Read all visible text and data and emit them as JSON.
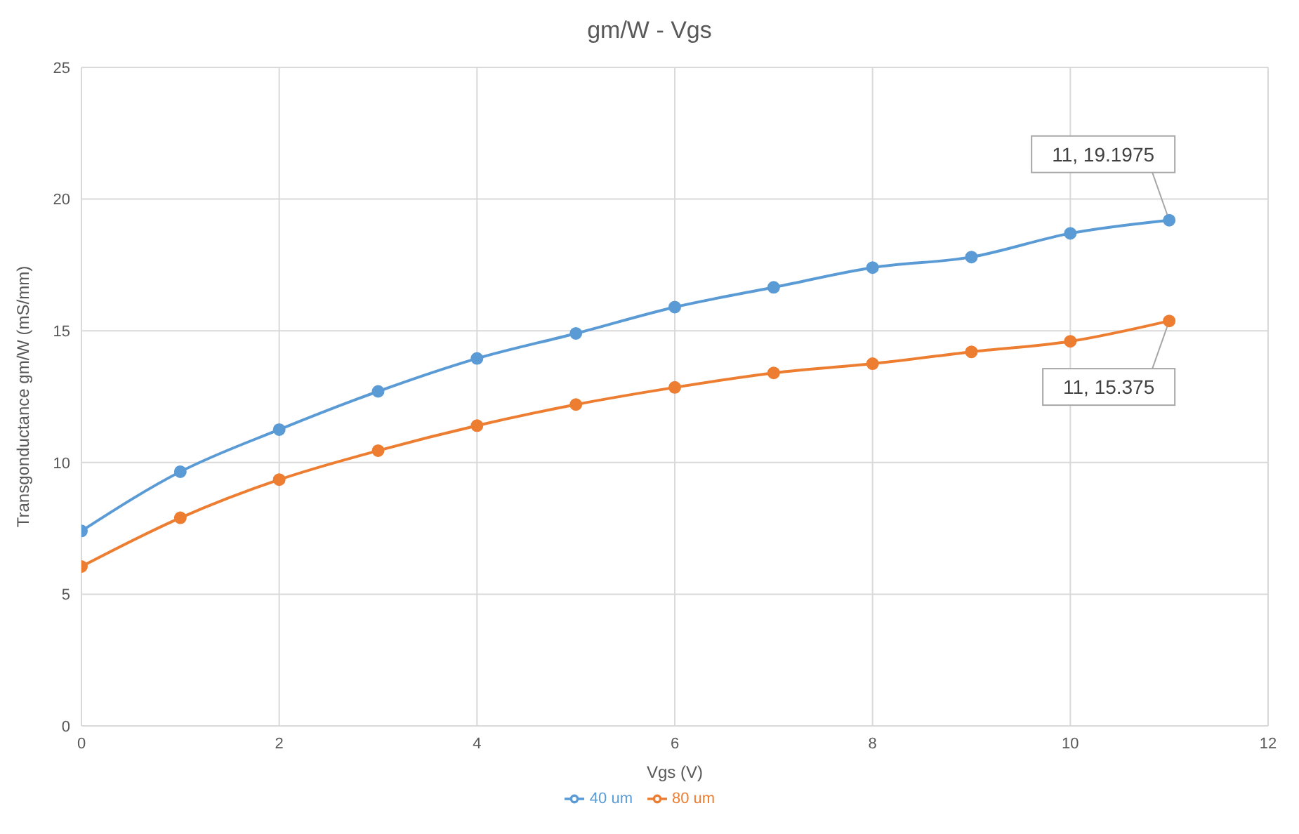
{
  "chart_data": {
    "type": "line",
    "title": "gm/W - Vgs",
    "xlabel": "Vgs (V)",
    "ylabel": "Transgonductance gm/W (mS/mm)",
    "x": [
      0,
      1,
      2,
      3,
      4,
      5,
      6,
      7,
      8,
      9,
      10,
      11
    ],
    "series": [
      {
        "name": "40 um",
        "color": "#5b9bd5",
        "values": [
          7.4,
          9.65,
          11.25,
          12.7,
          13.95,
          14.9,
          15.9,
          16.65,
          17.4,
          17.8,
          18.7,
          19.1975
        ]
      },
      {
        "name": "80 um",
        "color": "#ed7d31",
        "values": [
          6.05,
          7.9,
          9.35,
          10.45,
          11.4,
          12.2,
          12.85,
          13.4,
          13.75,
          14.2,
          14.6,
          15.375
        ]
      }
    ],
    "xlim": [
      0,
      12
    ],
    "xticks": [
      0,
      2,
      4,
      6,
      8,
      10,
      12
    ],
    "ylim": [
      0,
      25
    ],
    "yticks": [
      0,
      5,
      10,
      15,
      20,
      25
    ],
    "grid": true,
    "legend": "bottom",
    "marker": "circle",
    "line_style": "solid",
    "annotations": [
      {
        "text": "11, 19.1975",
        "x": 11,
        "y": 19.1975
      },
      {
        "text": "11, 15.375",
        "x": 11,
        "y": 15.375
      }
    ]
  }
}
